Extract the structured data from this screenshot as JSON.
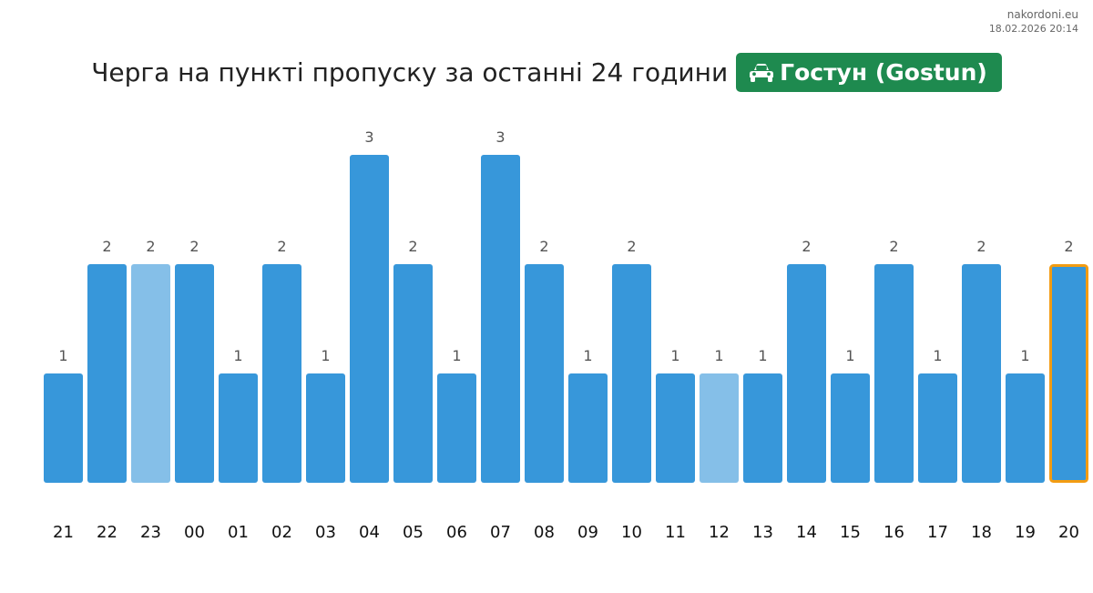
{
  "site": {
    "name": "nakordoni.eu",
    "timestamp": "18.02.2026 20:14"
  },
  "header": {
    "title": "Черга на пункті пропуску за останні 24 години",
    "badge_icon": "car-icon",
    "badge_label": "Гостун (Gostun)",
    "badge_color": "#1e8a4f"
  },
  "chart_data": {
    "type": "bar",
    "categories": [
      "21",
      "22",
      "23",
      "00",
      "01",
      "02",
      "03",
      "04",
      "05",
      "06",
      "07",
      "08",
      "09",
      "10",
      "11",
      "12",
      "13",
      "14",
      "15",
      "16",
      "17",
      "18",
      "19",
      "20"
    ],
    "values": [
      1,
      2,
      2,
      2,
      1,
      2,
      1,
      3,
      2,
      1,
      3,
      2,
      1,
      2,
      1,
      1,
      1,
      2,
      1,
      2,
      1,
      2,
      1,
      2
    ],
    "ylim": [
      0,
      3
    ],
    "grid": false,
    "bar_color": "#3797da",
    "muted_color": "#85bfe8",
    "muted_categories": [
      "23",
      "12"
    ],
    "highlight_category": "20",
    "highlight_border_color": "#f39c12"
  }
}
